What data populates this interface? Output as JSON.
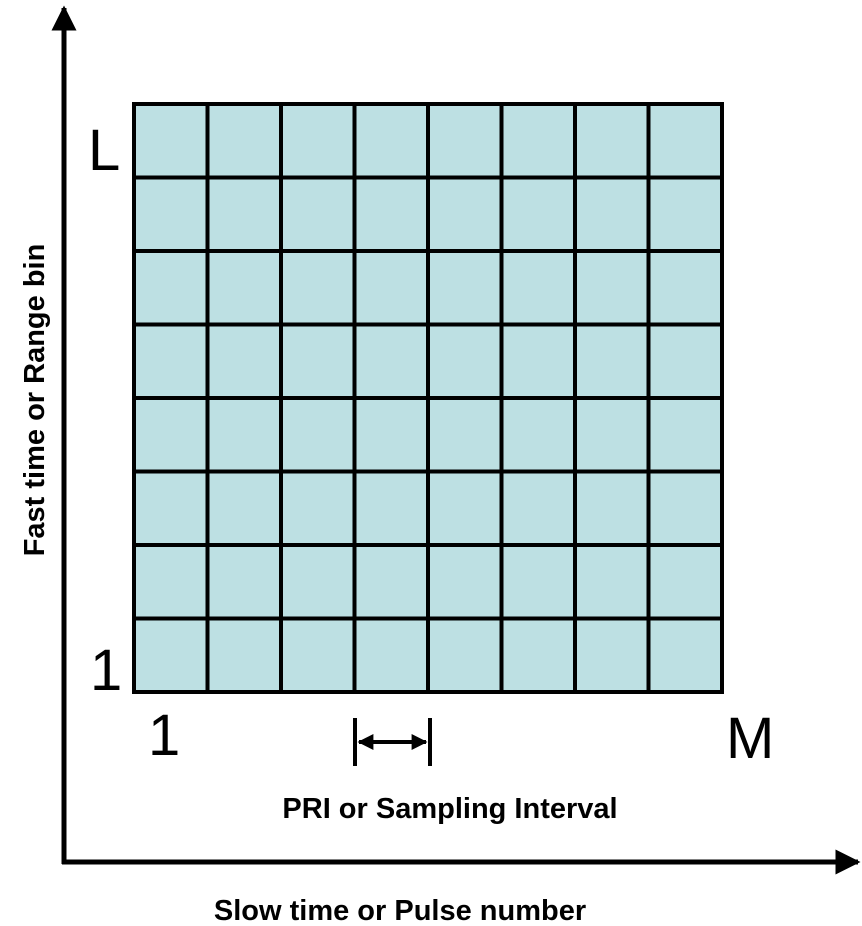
{
  "y_axis_label": "Fast time or Range bin",
  "x_axis_label": "Slow time or Pulse number",
  "corner_labels": {
    "top_left": "L",
    "bottom_left": "1",
    "bottom_start": "1",
    "bottom_end": "M"
  },
  "interval_label": "PRI or Sampling Interval"
}
